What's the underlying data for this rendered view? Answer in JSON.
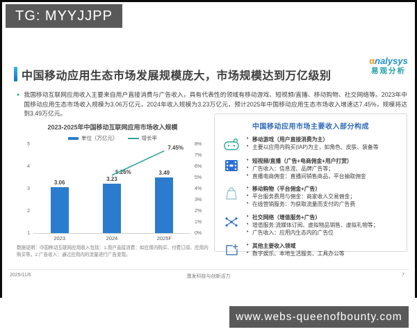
{
  "watermarks": {
    "top": "TG: MYYJJPP",
    "bottom": "www.webs-queenofbounty.com"
  },
  "logo": {
    "mark": "α",
    "name": "nalysys",
    "cn": "易观分析"
  },
  "header": {
    "title": "中国移动应用生态市场发展规模庞大，市场规模达到万亿级别"
  },
  "intro": {
    "text": "我国移动互联网应用收入主要来自用户直接消费与广告收入，具有代表性的领域有移动游戏、短视频/直播、移动购物、社交网络等。2023年中国移动应用生态市场收入规模为3.06万亿元，2024年收入规模为3.23万亿元，预计2025年中国移动应用生态市场收入增速达7.45%，规模将达到3.49万亿元。"
  },
  "chart_data": {
    "type": "bar",
    "title": "2023-2025年中国移动互联网应用市场收入规模",
    "categories": [
      "2023",
      "2024",
      "2025F"
    ],
    "series": [
      {
        "name": "单位（万亿元）",
        "kind": "bar",
        "values": [
          3.06,
          3.23,
          3.49
        ],
        "color": "#2b7cce",
        "axis": "left"
      },
      {
        "name": "增长率",
        "kind": "line",
        "values": [
          null,
          5.26,
          7.45
        ],
        "labels": [
          "",
          "5.26%",
          "7.45%"
        ],
        "color": "#2fa39b",
        "axis": "right"
      }
    ],
    "left_axis": {
      "min": 1,
      "max": 5,
      "ticks": [
        "5",
        "4",
        "3",
        "2",
        "1"
      ]
    },
    "right_axis": {
      "min": 0,
      "max": 8,
      "ticks": [
        "8%",
        "7%",
        "6%",
        "5%",
        "4%",
        "3%",
        "2%",
        "1%",
        "0%"
      ]
    },
    "legend_position": "top",
    "grid": false,
    "footnote": "数据说明：中国移动互联网应用收入包括：1.用户直接消费：如应用内购买、付费订阅、应用内购买等。2.广告收入：通过应用内的流量进行广告变现。"
  },
  "panel": {
    "title": "中国移动应用市场主要收入部分构成",
    "items": [
      {
        "icon": "gamepad-icon",
        "lines": [
          "移动游戏（用户直接消费为主）",
          "主要以应用内购买(IAP)为主，如角色、皮肤、装备等"
        ]
      },
      {
        "icon": "film-icon",
        "lines": [
          "短视频/直播（广告+电商佣金+用户打赏）",
          "广告收入：信息流、品牌广告等；",
          "直播电商佣金：直播间销售商品，平台抽取佣金"
        ]
      },
      {
        "icon": "shopping-bag-icon",
        "lines": [
          "移动购物（平台佣金+广告）",
          "平台服务费用与佣金：商家收入交易佣金；",
          "在线营销服务：为获取流量而支付的广告费"
        ]
      },
      {
        "icon": "network-icon",
        "lines": [
          "社交网络（增值服务+广告）",
          "增值服务:流媒体订阅、虚拟物品销售、虚拟礼物等；",
          "广告收入：应用内生态内的广告位"
        ]
      },
      {
        "icon": "plus-box-icon",
        "lines": [
          "其他主要收入领域",
          "数字娱乐、本地生活服务、工具办公等"
        ]
      }
    ]
  },
  "footer": {
    "date": "2025/11/6",
    "center": "激发科技与创新活力",
    "page": "7"
  }
}
